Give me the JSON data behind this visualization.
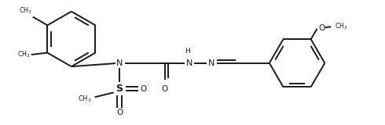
{
  "bg_color": "#ffffff",
  "line_color": "#1a1a1a",
  "line_width": 1.4,
  "fig_width": 4.9,
  "fig_height": 1.6,
  "dpi": 100,
  "xlim": [
    0,
    10
  ],
  "ylim": [
    0,
    3.27
  ]
}
